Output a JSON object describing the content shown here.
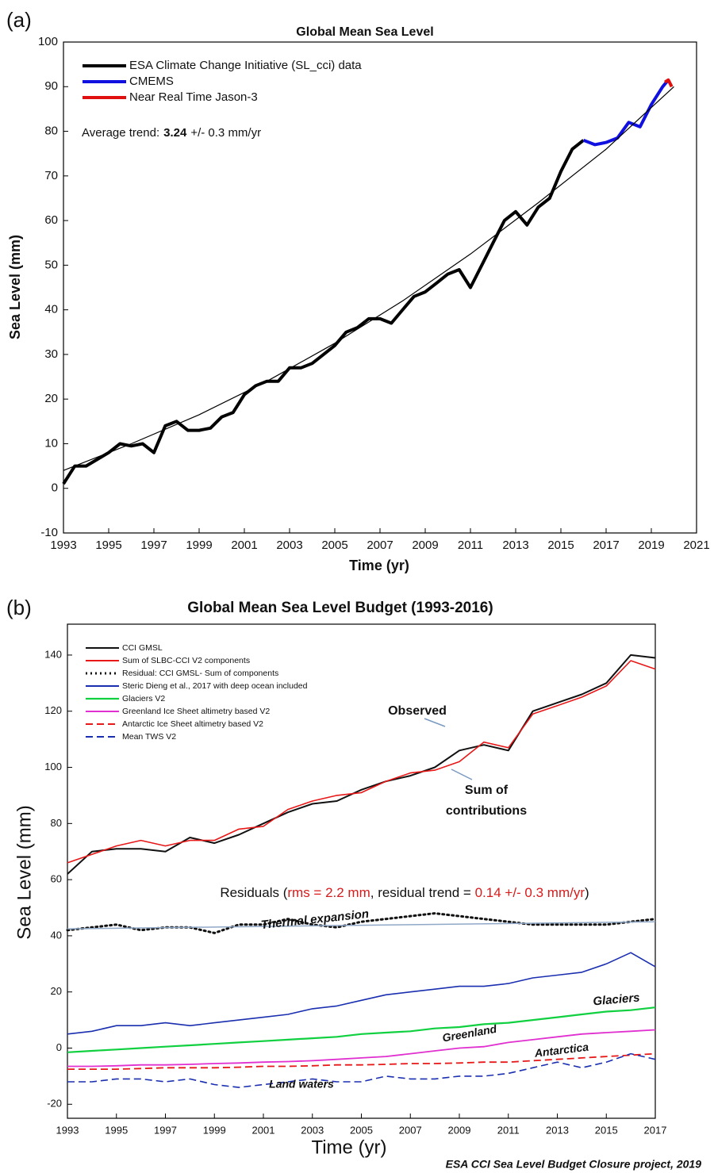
{
  "chart_data": [
    {
      "type": "line",
      "panel_label": "(a)",
      "title": "Global Mean Sea Level",
      "x_label": "Time (yr)",
      "y_label": "Sea Level (mm)",
      "xlim": [
        1993,
        2021
      ],
      "xticks": [
        1993,
        1995,
        1997,
        1999,
        2001,
        2003,
        2005,
        2007,
        2009,
        2011,
        2013,
        2015,
        2017,
        2019,
        2021
      ],
      "ylim": [
        -10,
        100
      ],
      "yticks": [
        -10,
        0,
        10,
        20,
        30,
        40,
        50,
        60,
        70,
        80,
        90,
        100
      ],
      "annotation": [
        "Average trend:",
        "3.24",
        "+/- 0.3 mm/yr"
      ],
      "series": [
        {
          "name": "ESA Climate Change Initiative (SL_cci) data",
          "color": "#000000",
          "width": 4,
          "x": [
            1993,
            1993.5,
            1994,
            1994.5,
            1995,
            1995.5,
            1996,
            1996.5,
            1997,
            1997.5,
            1998,
            1998.5,
            1999,
            1999.5,
            2000,
            2000.5,
            2001,
            2001.5,
            2002,
            2002.5,
            2003,
            2003.5,
            2004,
            2004.5,
            2005,
            2005.5,
            2006,
            2006.5,
            2007,
            2007.5,
            2008,
            2008.5,
            2009,
            2009.5,
            2010,
            2010.5,
            2011,
            2011.5,
            2012,
            2012.5,
            2013,
            2013.5,
            2014,
            2014.5,
            2015,
            2015.5,
            2016
          ],
          "values": [
            1,
            5,
            5,
            6.5,
            8,
            10,
            9.5,
            10,
            8,
            14,
            15,
            13,
            13,
            13.5,
            16,
            17,
            21,
            23,
            24,
            24,
            27,
            27,
            28,
            30,
            32,
            35,
            36,
            38,
            38,
            37,
            40,
            43,
            44,
            46,
            48,
            49,
            45,
            50,
            55,
            60,
            62,
            59,
            63,
            65,
            71,
            76,
            78
          ]
        },
        {
          "name": "CMEMS",
          "color": "#1010e0",
          "width": 4,
          "x": [
            2016,
            2016.5,
            2017,
            2017.5,
            2018,
            2018.5,
            2019,
            2019.5,
            2019.75
          ],
          "values": [
            78,
            77,
            77.5,
            78.5,
            82,
            81,
            86,
            90,
            91.5
          ]
        },
        {
          "name": "Near Real Time Jason-3",
          "color": "#e01010",
          "width": 4,
          "x": [
            2019.6,
            2019.75,
            2019.9
          ],
          "values": [
            91,
            91.5,
            90
          ]
        },
        {
          "color": "#000000",
          "width": 1.2,
          "x": [
            1993,
            1996,
            1999,
            2002,
            2005,
            2008,
            2011,
            2014,
            2017,
            2020
          ],
          "values": [
            4,
            10,
            16.5,
            24,
            32.5,
            42,
            52.5,
            64,
            76,
            90
          ]
        }
      ]
    },
    {
      "type": "line",
      "panel_label": "(b)",
      "title": "Global Mean Sea Level Budget (1993-2016)",
      "x_label": "Time (yr)",
      "y_label": "Sea Level (mm)",
      "source": "ESA CCI Sea Level Budget Closure project, 2019",
      "xlim": [
        1993,
        2017
      ],
      "xticks": [
        1993,
        1995,
        1997,
        1999,
        2001,
        2003,
        2005,
        2007,
        2009,
        2011,
        2013,
        2015,
        2017
      ],
      "ylim": [
        -25,
        151
      ],
      "yticks": [
        -20,
        0,
        20,
        40,
        60,
        80,
        100,
        120,
        140
      ],
      "annotations": [
        {
          "text": "Observed",
          "color": "#111111"
        },
        {
          "text": "Sum of",
          "color": "#d81b1b"
        },
        {
          "text": "contributions",
          "color": "#d81b1b"
        },
        {
          "text": "Thermal expansion",
          "color": "#1a2fb0"
        },
        {
          "text": "Glaciers",
          "color": "#10b050"
        },
        {
          "text": "Greenland",
          "color": "#d030b0"
        },
        {
          "text": "Antarctica",
          "color": "#d81b1b"
        },
        {
          "text": "Land waters",
          "color": "#1a2fb0"
        }
      ],
      "residuals_text": [
        {
          "text": "Residuals (",
          "color": "#111111"
        },
        {
          "text": "rms = 2.2 mm",
          "color": "#d81b1b"
        },
        {
          "text": ", residual trend = ",
          "color": "#111111"
        },
        {
          "text": "0.14 +/- 0.3 mm/yr",
          "color": "#d81b1b"
        },
        {
          "text": ")",
          "color": "#111111"
        }
      ],
      "series": [
        {
          "name": "CCI GMSL",
          "color": "#111111",
          "width": 2,
          "dash": "solid",
          "x": [
            1993,
            1994,
            1995,
            1996,
            1997,
            1998,
            1999,
            2000,
            2001,
            2002,
            2003,
            2004,
            2005,
            2006,
            2007,
            2008,
            2009,
            2010,
            2011,
            2012,
            2013,
            2014,
            2015,
            2016,
            2017
          ],
          "values": [
            62,
            70,
            71,
            71,
            70,
            75,
            73,
            76,
            80,
            84,
            87,
            88,
            92,
            95,
            97,
            100,
            106,
            108,
            106,
            120,
            123,
            126,
            130,
            140,
            139
          ]
        },
        {
          "name": "Sum of SLBC-CCI V2 components",
          "color": "#e81818",
          "width": 1.6,
          "dash": "solid",
          "x": [
            1993,
            1994,
            1995,
            1996,
            1997,
            1998,
            1999,
            2000,
            2001,
            2002,
            2003,
            2004,
            2005,
            2006,
            2007,
            2008,
            2009,
            2010,
            2011,
            2012,
            2013,
            2014,
            2015,
            2016,
            2017
          ],
          "values": [
            66,
            69,
            72,
            74,
            72,
            74,
            74,
            78,
            79,
            85,
            88,
            90,
            91,
            95,
            98,
            99,
            102,
            109,
            107,
            119,
            122,
            125,
            129,
            138,
            135
          ]
        },
        {
          "name": "Residual: CCI GMSL- Sum of components",
          "color": "#111111",
          "width": 3,
          "dash": "dotted",
          "x": [
            1993,
            1994,
            1995,
            1996,
            1997,
            1998,
            1999,
            2000,
            2001,
            2002,
            2003,
            2004,
            2005,
            2006,
            2007,
            2008,
            2009,
            2010,
            2011,
            2012,
            2013,
            2014,
            2015,
            2016,
            2017
          ],
          "values": [
            42,
            43,
            44,
            42,
            43,
            43,
            41,
            44,
            44,
            46,
            44,
            43,
            45,
            46,
            47,
            48,
            47,
            46,
            45,
            44,
            44,
            44,
            44,
            45,
            46
          ]
        },
        {
          "name": "Steric Dieng et al., 2017 with deep ocean included",
          "color": "#1a2fb0",
          "width": 1.6,
          "dash": "solid",
          "x": [
            1993,
            1994,
            1995,
            1996,
            1997,
            1998,
            1999,
            2000,
            2001,
            2002,
            2003,
            2004,
            2005,
            2006,
            2007,
            2008,
            2009,
            2010,
            2011,
            2012,
            2013,
            2014,
            2015,
            2016,
            2017
          ],
          "values": [
            5,
            6,
            8,
            8,
            9,
            8,
            9,
            10,
            11,
            12,
            14,
            15,
            17,
            19,
            20,
            21,
            22,
            22,
            23,
            25,
            26,
            27,
            30,
            34,
            29
          ]
        },
        {
          "name": "Glaciers V2",
          "color": "#10d040",
          "width": 2.2,
          "dash": "solid",
          "x": [
            1993,
            1994,
            1995,
            1996,
            1997,
            1998,
            1999,
            2000,
            2001,
            2002,
            2003,
            2004,
            2005,
            2006,
            2007,
            2008,
            2009,
            2010,
            2011,
            2012,
            2013,
            2014,
            2015,
            2016,
            2017
          ],
          "values": [
            -1.5,
            -1,
            -0.5,
            0,
            0.5,
            1,
            1.5,
            2,
            2.5,
            3,
            3.5,
            4,
            5,
            5.5,
            6,
            7,
            7.5,
            8.5,
            9,
            10,
            11,
            12,
            13,
            13.5,
            14.5
          ]
        },
        {
          "name": "Greenland Ice Sheet altimetry based V2",
          "color": "#e030d0",
          "width": 1.8,
          "dash": "solid",
          "x": [
            1993,
            1994,
            1995,
            1996,
            1997,
            1998,
            1999,
            2000,
            2001,
            2002,
            2003,
            2004,
            2005,
            2006,
            2007,
            2008,
            2009,
            2010,
            2011,
            2012,
            2013,
            2014,
            2015,
            2016,
            2017
          ],
          "values": [
            -6.5,
            -6.5,
            -6.3,
            -6,
            -6,
            -5.8,
            -5.5,
            -5.3,
            -5,
            -4.8,
            -4.5,
            -4,
            -3.5,
            -3,
            -2,
            -1,
            0,
            0.5,
            2,
            3,
            4,
            5,
            5.5,
            6,
            6.5
          ]
        },
        {
          "name": "Antarctic Ice Sheet altimetry based V2",
          "color": "#e81818",
          "width": 1.8,
          "dash": "dashed",
          "x": [
            1993,
            1994,
            1995,
            1996,
            1997,
            1998,
            1999,
            2000,
            2001,
            2002,
            2003,
            2004,
            2005,
            2006,
            2007,
            2008,
            2009,
            2010,
            2011,
            2012,
            2013,
            2014,
            2015,
            2016,
            2017
          ],
          "values": [
            -7.5,
            -7.5,
            -7.5,
            -7.3,
            -7,
            -7,
            -7,
            -6.8,
            -6.5,
            -6.5,
            -6.3,
            -6,
            -6,
            -5.8,
            -5.5,
            -5.5,
            -5.3,
            -5,
            -5,
            -4.5,
            -4,
            -3.5,
            -3,
            -2.5,
            -2
          ]
        },
        {
          "name": "Mean TWS V2",
          "color": "#1a2fb0",
          "width": 1.6,
          "dash": "dashed",
          "x": [
            1993,
            1994,
            1995,
            1996,
            1997,
            1998,
            1999,
            2000,
            2001,
            2002,
            2003,
            2004,
            2005,
            2006,
            2007,
            2008,
            2009,
            2010,
            2011,
            2012,
            2013,
            2014,
            2015,
            2016,
            2017
          ],
          "values": [
            -12,
            -12,
            -11,
            -11,
            -12,
            -11,
            -13,
            -14,
            -13,
            -12,
            -11,
            -12,
            -12,
            -10,
            -11,
            -11,
            -10,
            -10,
            -9,
            -7,
            -5,
            -7,
            -5,
            -2,
            -4
          ]
        },
        {
          "color": "#90a8c8",
          "width": 1.5,
          "dash": "solid",
          "x": [
            1993,
            2017
          ],
          "values": [
            42.5,
            45
          ]
        }
      ]
    }
  ]
}
